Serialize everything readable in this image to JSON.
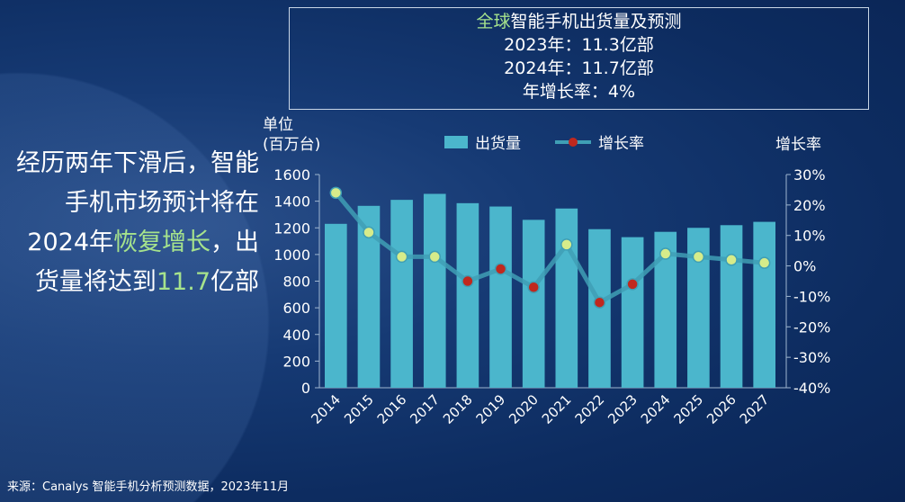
{
  "box": {
    "title_green": "全球",
    "title_rest": "智能手机出货量及预测",
    "line1": "2023年：11.3亿部",
    "line2": "2024年：11.7亿部",
    "line3": "年增长率：4%"
  },
  "lead": {
    "p1": "经历两年下滑后，智能手机市场预计将在2024年",
    "p2": "恢复增长",
    "p3": "，出货量将达到",
    "p4": "11.7",
    "p5": "亿部"
  },
  "source": "来源：Canalys 智能手机分析预测数据，2023年11月",
  "chart_data": {
    "type": "bar",
    "categories": [
      "2014",
      "2015",
      "2016",
      "2017",
      "2018",
      "2019",
      "2020",
      "2021",
      "2022",
      "2023",
      "2024",
      "2025",
      "2026",
      "2027"
    ],
    "series": [
      {
        "name": "出货量",
        "type": "bar",
        "axis": "left",
        "values": [
          1230,
          1365,
          1410,
          1455,
          1385,
          1360,
          1260,
          1345,
          1190,
          1130,
          1170,
          1200,
          1220,
          1245
        ],
        "color": "#4bb6cc"
      },
      {
        "name": "增长率",
        "type": "line",
        "axis": "right",
        "values": [
          24,
          11,
          3,
          3,
          -5,
          -1,
          -7,
          7,
          -12,
          -6,
          4,
          3,
          2,
          1
        ],
        "color": "#3f9fb5",
        "positive_marker": "#d6ec8a",
        "negative_marker": "#c0281e"
      }
    ],
    "ylabel": "单位\n(百万台)",
    "ylabel_line1": "单位",
    "ylabel_line2": "(百万台)",
    "y2label": "增长率",
    "ylim": [
      0,
      1600
    ],
    "yticks": [
      "0",
      "200",
      "400",
      "600",
      "800",
      "1000",
      "1200",
      "1400",
      "1600"
    ],
    "y2lim": [
      -40,
      30
    ],
    "y2ticks": [
      "-40%",
      "-30%",
      "-20%",
      "-10%",
      "0%",
      "10%",
      "20%",
      "30%"
    ],
    "grid": false,
    "legend": "top"
  }
}
